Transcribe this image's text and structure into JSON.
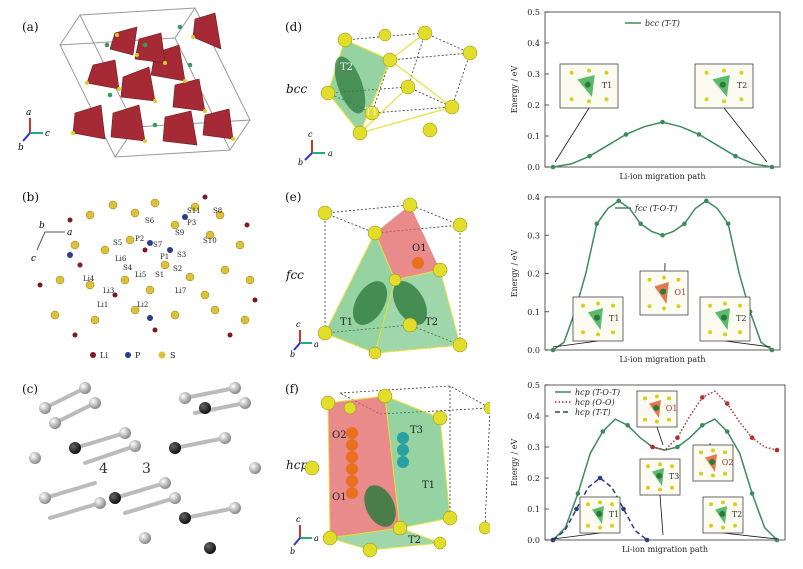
{
  "panels": {
    "a": "(a)",
    "b": "(b)",
    "c": "(c)",
    "d": "(d)",
    "e": "(e)",
    "f": "(f)"
  },
  "structures": {
    "bcc": "bcc",
    "fcc": "fcc",
    "hcp": "hcp"
  },
  "panel_a": {
    "axes": [
      "a",
      "b",
      "c"
    ]
  },
  "panel_b": {
    "axes": [
      "a",
      "b",
      "c"
    ],
    "site_labels": [
      "S11",
      "S8",
      "S6",
      "P3",
      "S9",
      "S10",
      "S5",
      "S7",
      "P2",
      "S3",
      "Li6",
      "P1",
      "S2",
      "S4",
      "S1",
      "Li5",
      "Li4",
      "Li3",
      "Li7",
      "Li2",
      "Li1"
    ],
    "legend": [
      "Li",
      "P",
      "S"
    ]
  },
  "panel_c": {
    "numbers": [
      "4",
      "3"
    ]
  },
  "panel_d": {
    "site_labels": [
      "T2",
      "T1"
    ],
    "axes": [
      "c",
      "b",
      "a"
    ]
  },
  "panel_e": {
    "site_labels": [
      "O1",
      "T1",
      "T2"
    ],
    "axes": [
      "c",
      "b",
      "a"
    ]
  },
  "panel_f": {
    "site_labels": [
      "O2",
      "T3",
      "O1",
      "T1",
      "T2"
    ],
    "axes": [
      "c",
      "b",
      "a"
    ]
  },
  "colors": {
    "curve_green": "#3d8a5e",
    "curve_red": "#b03030",
    "curve_navy": "#2e3d80",
    "atom_yellow": "#d8d020"
  },
  "chart_data": [
    {
      "type": "line",
      "xlabel": "Li-ion migration path",
      "ylabel": "Energy / eV",
      "ylim": [
        0,
        0.5
      ],
      "yticks": [
        "0.0",
        "0.1",
        "0.2",
        "0.3",
        "0.4",
        "0.5"
      ],
      "series": [
        {
          "name": "bcc (T-T)",
          "style": "solid",
          "color": "#3d8a5e",
          "values": [
            0.0,
            0.01,
            0.035,
            0.07,
            0.105,
            0.13,
            0.145,
            0.13,
            0.105,
            0.07,
            0.035,
            0.01,
            0.0
          ]
        }
      ],
      "insets": [
        "T1",
        "T2"
      ]
    },
    {
      "type": "line",
      "xlabel": "Li-ion migration path",
      "ylabel": "Energy / eV",
      "ylim": [
        0,
        0.4
      ],
      "yticks": [
        "0.0",
        "0.1",
        "0.2",
        "0.3",
        "0.4"
      ],
      "series": [
        {
          "name": "fcc (T-O-T)",
          "style": "solid",
          "color": "#3d8a5e",
          "values": [
            0.0,
            0.02,
            0.1,
            0.2,
            0.33,
            0.37,
            0.39,
            0.37,
            0.33,
            0.31,
            0.3,
            0.31,
            0.33,
            0.37,
            0.39,
            0.37,
            0.33,
            0.2,
            0.1,
            0.02,
            0.0
          ]
        }
      ],
      "insets": [
        "T1",
        "O1",
        "T2"
      ]
    },
    {
      "type": "line",
      "xlabel": "Li-ion migration path",
      "ylabel": "Energy / eV",
      "ylim": [
        0,
        0.5
      ],
      "yticks": [
        "0.0",
        "0.1",
        "0.2",
        "0.3",
        "0.4",
        "0.5"
      ],
      "series": [
        {
          "name": "hcp (T-O-T)",
          "style": "solid",
          "color": "#3d8a5e",
          "values": [
            0.0,
            0.04,
            0.15,
            0.28,
            0.35,
            0.39,
            0.37,
            0.33,
            0.3,
            0.29,
            0.3,
            0.33,
            0.37,
            0.39,
            0.35,
            0.28,
            0.15,
            0.04,
            0.0
          ]
        },
        {
          "name": "hcp (O-O)",
          "style": "dotted",
          "color": "#b03030",
          "values": [
            null,
            null,
            null,
            null,
            null,
            null,
            null,
            null,
            0.3,
            0.29,
            0.33,
            0.4,
            0.46,
            0.48,
            0.44,
            0.38,
            0.33,
            0.3,
            0.29
          ]
        },
        {
          "name": "hcp (T-T)",
          "style": "dashed",
          "color": "#2e3d80",
          "values": [
            0.0,
            0.03,
            0.1,
            0.17,
            0.2,
            0.17,
            0.1,
            0.03,
            0.0
          ]
        }
      ],
      "insets": [
        "O1",
        "O2",
        "T3",
        "T1",
        "T2"
      ]
    }
  ]
}
